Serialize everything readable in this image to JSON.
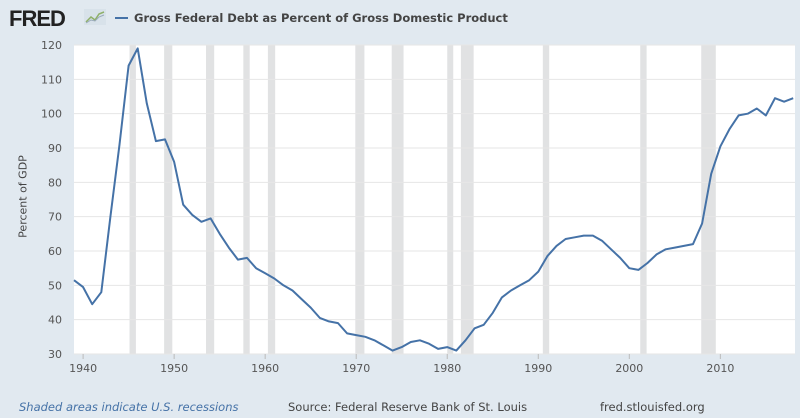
{
  "header": {
    "logo": "FRED",
    "legend_label": "Gross Federal Debt as Percent of Gross Domestic Product"
  },
  "footer": {
    "note": "Shaded areas indicate U.S. recessions",
    "source": "Source: Federal Reserve Bank of St. Louis",
    "url": "fred.stlouisfed.org"
  },
  "chart_data": {
    "type": "line",
    "title": "Gross Federal Debt as Percent of Gross Domestic Product",
    "xlabel": "",
    "ylabel": "Percent of GDP",
    "xlim": [
      1939,
      2018.2
    ],
    "ylim": [
      30,
      120
    ],
    "xticks": [
      1940,
      1950,
      1960,
      1970,
      1980,
      1990,
      2000,
      2010
    ],
    "yticks": [
      30,
      40,
      50,
      60,
      70,
      80,
      90,
      100,
      110,
      120
    ],
    "grid": true,
    "color": "#4572a7",
    "recessions": [
      [
        1945.1,
        1945.8
      ],
      [
        1948.9,
        1949.8
      ],
      [
        1953.5,
        1954.4
      ],
      [
        1957.6,
        1958.3
      ],
      [
        1960.3,
        1961.1
      ],
      [
        1969.9,
        1970.9
      ],
      [
        1973.9,
        1975.2
      ],
      [
        1980.0,
        1980.5
      ],
      [
        1981.5,
        1982.9
      ],
      [
        1990.5,
        1991.2
      ],
      [
        2001.2,
        2001.9
      ],
      [
        2007.9,
        2009.5
      ]
    ],
    "series": [
      {
        "name": "Gross Federal Debt as Percent of Gross Domestic Product",
        "x": [
          1939,
          1940,
          1941,
          1942,
          1943,
          1944,
          1945,
          1946,
          1947,
          1948,
          1949,
          1950,
          1951,
          1952,
          1953,
          1954,
          1955,
          1956,
          1957,
          1958,
          1959,
          1960,
          1961,
          1962,
          1963,
          1964,
          1965,
          1966,
          1967,
          1968,
          1969,
          1970,
          1971,
          1972,
          1973,
          1974,
          1975,
          1976,
          1977,
          1978,
          1979,
          1980,
          1981,
          1982,
          1983,
          1984,
          1985,
          1986,
          1987,
          1988,
          1989,
          1990,
          1991,
          1992,
          1993,
          1994,
          1995,
          1996,
          1997,
          1998,
          1999,
          2000,
          2001,
          2002,
          2003,
          2004,
          2005,
          2006,
          2007,
          2008,
          2009,
          2010,
          2011,
          2012,
          2013,
          2014,
          2015,
          2016,
          2017,
          2018
        ],
        "values": [
          51.5,
          49.5,
          44.5,
          48,
          70,
          91,
          114,
          119,
          103,
          92,
          92.5,
          86,
          73.5,
          70.5,
          68.5,
          69.5,
          65,
          61,
          57.5,
          58,
          55,
          53.5,
          52,
          50,
          48.5,
          46,
          43.5,
          40.5,
          39.5,
          39,
          36,
          35.5,
          35,
          34,
          32.5,
          31,
          32,
          33.5,
          34,
          33,
          31.5,
          32,
          31,
          34,
          37.5,
          38.5,
          42,
          46.5,
          48.5,
          50,
          51.5,
          54,
          58.5,
          61.5,
          63.5,
          64,
          64.5,
          64.5,
          63,
          60.5,
          58,
          55,
          54.5,
          56.5,
          59,
          60.5,
          61,
          61.5,
          62,
          68,
          82.5,
          90.5,
          95.5,
          99.5,
          100,
          101.5,
          99.5,
          104.5,
          103.5,
          104.5
        ]
      }
    ]
  }
}
